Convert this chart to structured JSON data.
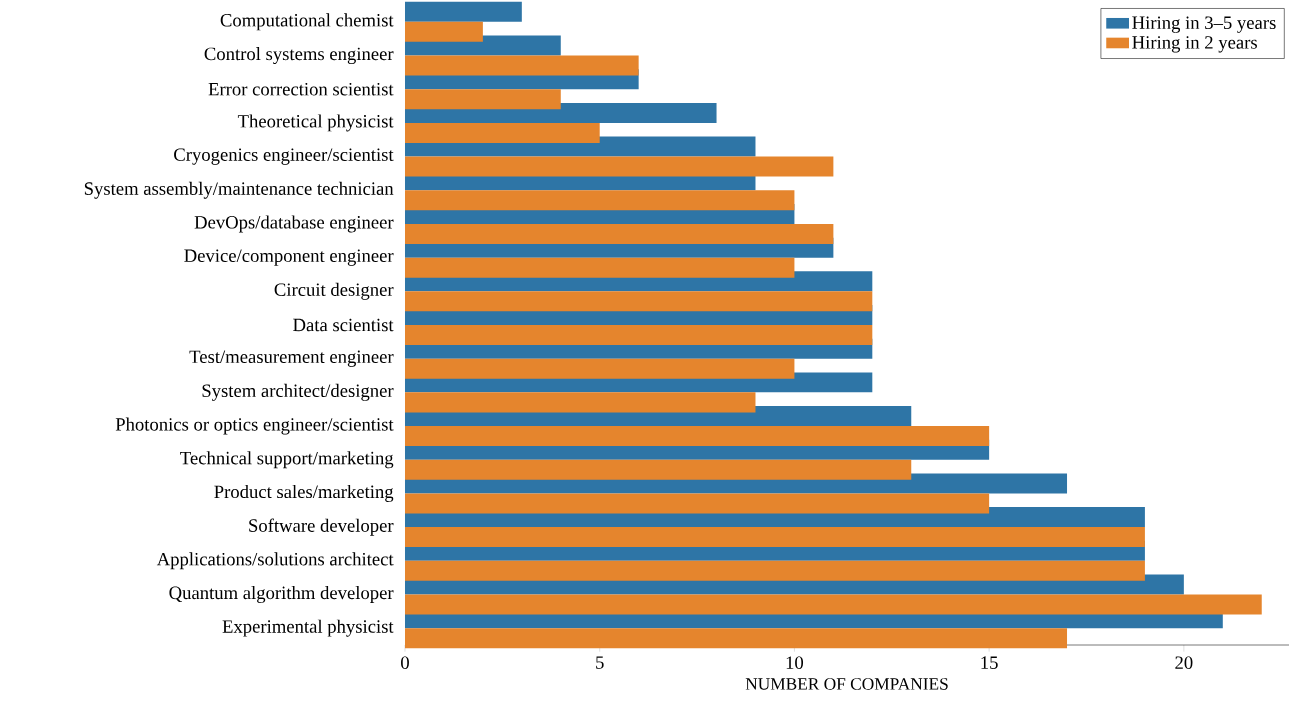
{
  "chart_data": {
    "type": "bar",
    "orientation": "horizontal",
    "xlabel": "NUMBER OF COMPANIES",
    "categories": [
      "Computational chemist",
      "Control systems engineer",
      "Error correction scientist",
      "Theoretical physicist",
      "Cryogenics engineer/scientist",
      "System assembly/maintenance technician",
      "DevOps/database engineer",
      "Device/component engineer",
      "Circuit designer",
      "Data scientist",
      "Test/measurement engineer",
      "System architect/designer",
      "Photonics or optics engineer/scientist",
      "Technical support/marketing",
      "Product sales/marketing",
      "Software developer",
      "Applications/solutions architect",
      "Quantum algorithm developer",
      "Experimental physicist"
    ],
    "series": [
      {
        "name": "Hiring in 3–5 years",
        "color": "#2e75a6",
        "values": [
          3,
          4,
          6,
          8,
          9,
          9,
          10,
          11,
          12,
          12,
          12,
          12,
          13,
          15,
          17,
          19,
          19,
          20,
          21
        ]
      },
      {
        "name": "Hiring in 2 years",
        "color": "#e5852d",
        "values": [
          2,
          6,
          4,
          5,
          11,
          10,
          11,
          10,
          12,
          12,
          10,
          9,
          15,
          13,
          15,
          19,
          19,
          22,
          17
        ]
      }
    ],
    "xlim": [
      0,
      22.7
    ],
    "xticks": [
      0,
      5,
      10,
      15,
      20
    ],
    "grid": false,
    "legend": "top right"
  }
}
